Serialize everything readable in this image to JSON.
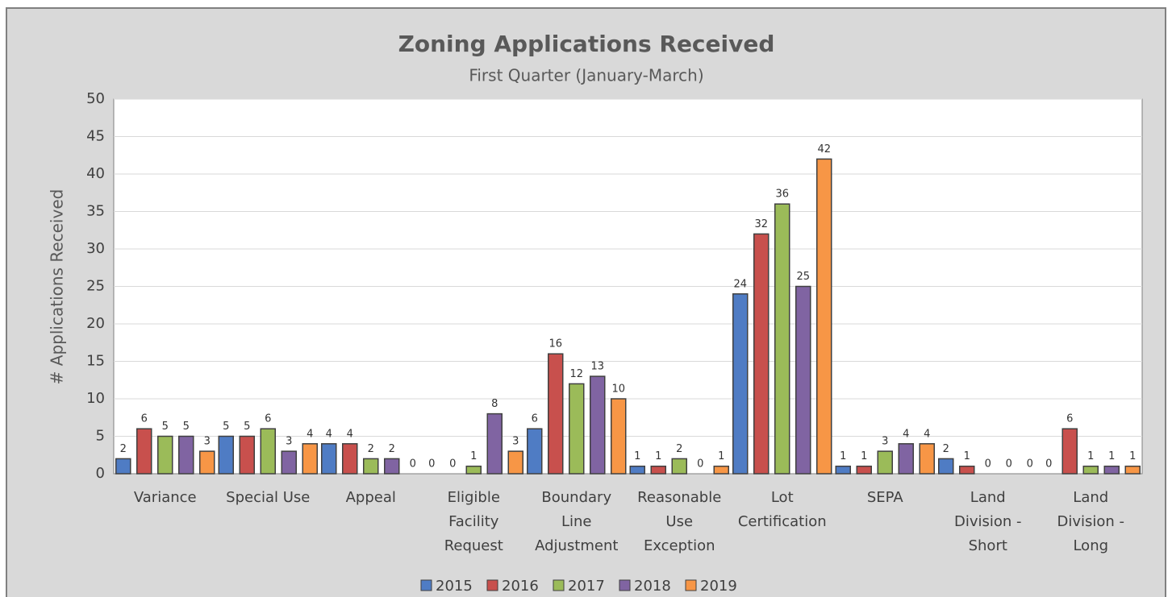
{
  "chart_data": {
    "type": "bar",
    "title": "Zoning Applications Received",
    "subtitle": "First Quarter (January-March)",
    "y_label": "# Applications Received",
    "categories": [
      [
        "Variance"
      ],
      [
        "Special Use"
      ],
      [
        "Appeal"
      ],
      [
        "Eligible",
        "Facility",
        "Request"
      ],
      [
        "Boundary",
        "Line",
        "Adjustment"
      ],
      [
        "Reasonable",
        "Use",
        "Exception"
      ],
      [
        "Lot",
        "Certification"
      ],
      [
        "SEPA"
      ],
      [
        "Land",
        "Division -",
        "Short"
      ],
      [
        "Land",
        "Division -",
        "Long"
      ]
    ],
    "series": [
      {
        "name": "2015",
        "color": "#4f7cc4",
        "values": [
          2,
          5,
          4,
          0,
          6,
          1,
          24,
          1,
          2,
          0
        ]
      },
      {
        "name": "2016",
        "color": "#c8504d",
        "values": [
          6,
          5,
          4,
          0,
          16,
          1,
          32,
          1,
          1,
          6
        ]
      },
      {
        "name": "2017",
        "color": "#9bbb59",
        "values": [
          5,
          6,
          2,
          1,
          12,
          2,
          36,
          3,
          0,
          1
        ]
      },
      {
        "name": "2018",
        "color": "#8064a2",
        "values": [
          5,
          3,
          2,
          8,
          13,
          0,
          25,
          4,
          0,
          1
        ]
      },
      {
        "name": "2019",
        "color": "#f79646",
        "values": [
          3,
          4,
          0,
          3,
          10,
          1,
          42,
          4,
          0,
          1
        ]
      }
    ],
    "ylim": [
      0,
      50
    ],
    "yticks": [
      0,
      5,
      10,
      15,
      20,
      25,
      30,
      35,
      40,
      45,
      50
    ],
    "grid": true,
    "legend": "bottom"
  }
}
